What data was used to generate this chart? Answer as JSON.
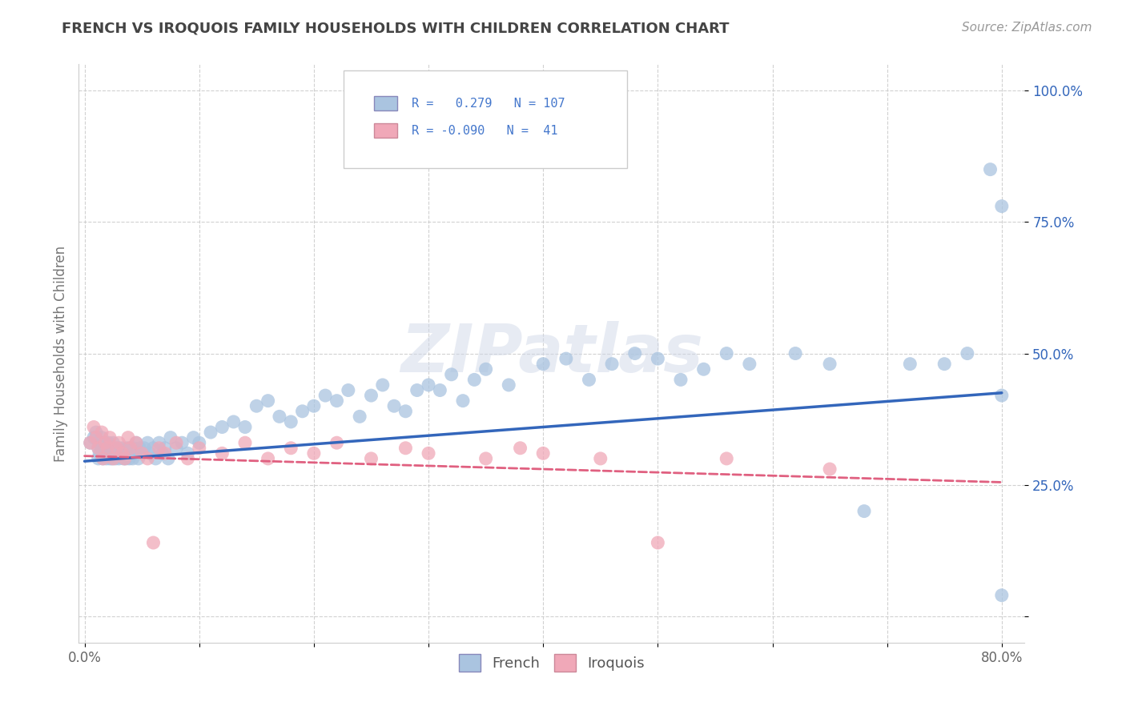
{
  "title": "FRENCH VS IROQUOIS FAMILY HOUSEHOLDS WITH CHILDREN CORRELATION CHART",
  "source": "Source: ZipAtlas.com",
  "ylabel": "Family Households with Children",
  "watermark": "ZIPatlas",
  "xlim": [
    -0.005,
    0.82
  ],
  "ylim": [
    -0.05,
    1.05
  ],
  "xticks": [
    0.0,
    0.1,
    0.2,
    0.3,
    0.4,
    0.5,
    0.6,
    0.7,
    0.8
  ],
  "xticklabels": [
    "0.0%",
    "",
    "",
    "",
    "",
    "",
    "",
    "",
    "80.0%"
  ],
  "yticks": [
    0.0,
    0.25,
    0.5,
    0.75,
    1.0
  ],
  "yticklabels": [
    "",
    "25.0%",
    "50.0%",
    "75.0%",
    "100.0%"
  ],
  "french_R": 0.279,
  "french_N": 107,
  "iroquois_R": -0.09,
  "iroquois_N": 41,
  "french_color": "#aac4e0",
  "iroquois_color": "#f0a8b8",
  "french_line_color": "#3366bb",
  "iroquois_line_color": "#e06080",
  "legend_text_color": "#4477cc",
  "title_color": "#444444",
  "watermark_color": "#d8d8d8",
  "background_color": "#ffffff",
  "french_x": [
    0.005,
    0.008,
    0.01,
    0.012,
    0.012,
    0.013,
    0.014,
    0.015,
    0.015,
    0.016,
    0.016,
    0.017,
    0.018,
    0.018,
    0.019,
    0.02,
    0.02,
    0.021,
    0.022,
    0.022,
    0.023,
    0.024,
    0.025,
    0.025,
    0.026,
    0.027,
    0.028,
    0.03,
    0.03,
    0.031,
    0.033,
    0.034,
    0.035,
    0.036,
    0.037,
    0.038,
    0.039,
    0.04,
    0.041,
    0.042,
    0.043,
    0.044,
    0.045,
    0.047,
    0.048,
    0.05,
    0.052,
    0.055,
    0.057,
    0.06,
    0.062,
    0.065,
    0.068,
    0.07,
    0.073,
    0.075,
    0.08,
    0.085,
    0.09,
    0.095,
    0.1,
    0.11,
    0.12,
    0.13,
    0.14,
    0.15,
    0.16,
    0.17,
    0.18,
    0.19,
    0.2,
    0.21,
    0.22,
    0.23,
    0.24,
    0.25,
    0.26,
    0.27,
    0.28,
    0.29,
    0.3,
    0.31,
    0.32,
    0.33,
    0.34,
    0.35,
    0.37,
    0.4,
    0.42,
    0.44,
    0.46,
    0.48,
    0.5,
    0.52,
    0.54,
    0.56,
    0.58,
    0.62,
    0.65,
    0.68,
    0.72,
    0.75,
    0.77,
    0.79,
    0.8,
    0.8,
    0.8
  ],
  "french_y": [
    0.33,
    0.34,
    0.35,
    0.3,
    0.32,
    0.31,
    0.33,
    0.34,
    0.32,
    0.3,
    0.31,
    0.33,
    0.32,
    0.31,
    0.3,
    0.32,
    0.31,
    0.33,
    0.3,
    0.32,
    0.31,
    0.3,
    0.33,
    0.31,
    0.32,
    0.3,
    0.31,
    0.32,
    0.3,
    0.31,
    0.32,
    0.3,
    0.31,
    0.3,
    0.32,
    0.31,
    0.3,
    0.32,
    0.31,
    0.3,
    0.32,
    0.31,
    0.33,
    0.3,
    0.32,
    0.31,
    0.32,
    0.33,
    0.31,
    0.32,
    0.3,
    0.33,
    0.31,
    0.32,
    0.3,
    0.34,
    0.32,
    0.33,
    0.31,
    0.34,
    0.33,
    0.35,
    0.36,
    0.37,
    0.36,
    0.4,
    0.41,
    0.38,
    0.37,
    0.39,
    0.4,
    0.42,
    0.41,
    0.43,
    0.38,
    0.42,
    0.44,
    0.4,
    0.39,
    0.43,
    0.44,
    0.43,
    0.46,
    0.41,
    0.45,
    0.47,
    0.44,
    0.48,
    0.49,
    0.45,
    0.48,
    0.5,
    0.49,
    0.45,
    0.47,
    0.5,
    0.48,
    0.5,
    0.48,
    0.2,
    0.48,
    0.48,
    0.5,
    0.85,
    0.42,
    0.78,
    0.04
  ],
  "iroquois_x": [
    0.005,
    0.008,
    0.01,
    0.012,
    0.015,
    0.016,
    0.018,
    0.02,
    0.022,
    0.025,
    0.028,
    0.03,
    0.033,
    0.035,
    0.038,
    0.04,
    0.045,
    0.05,
    0.055,
    0.06,
    0.065,
    0.07,
    0.08,
    0.09,
    0.1,
    0.12,
    0.14,
    0.16,
    0.18,
    0.2,
    0.22,
    0.25,
    0.28,
    0.3,
    0.35,
    0.38,
    0.4,
    0.45,
    0.5,
    0.56,
    0.65
  ],
  "iroquois_y": [
    0.33,
    0.36,
    0.34,
    0.32,
    0.35,
    0.3,
    0.33,
    0.32,
    0.34,
    0.3,
    0.32,
    0.33,
    0.31,
    0.3,
    0.34,
    0.32,
    0.33,
    0.31,
    0.3,
    0.14,
    0.32,
    0.31,
    0.33,
    0.3,
    0.32,
    0.31,
    0.33,
    0.3,
    0.32,
    0.31,
    0.33,
    0.3,
    0.32,
    0.31,
    0.3,
    0.32,
    0.31,
    0.3,
    0.14,
    0.3,
    0.28
  ]
}
